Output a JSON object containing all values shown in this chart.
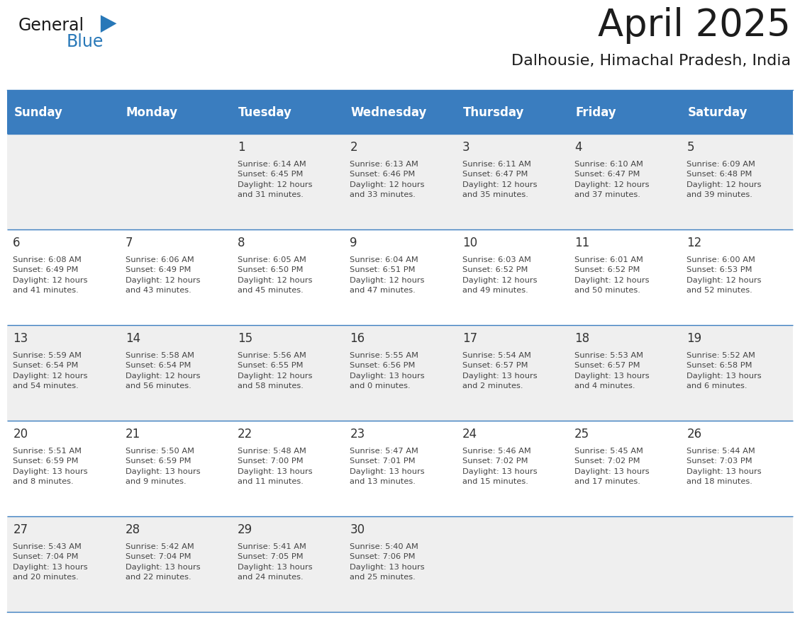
{
  "title": "April 2025",
  "subtitle": "Dalhousie, Himachal Pradesh, India",
  "header_bg_color": "#3a7dbf",
  "header_text_color": "#ffffff",
  "weekdays": [
    "Sunday",
    "Monday",
    "Tuesday",
    "Wednesday",
    "Thursday",
    "Friday",
    "Saturday"
  ],
  "row_colors": [
    "#efefef",
    "#ffffff"
  ],
  "border_color": "#3a7dbf",
  "text_color": "#333333",
  "calendar_data": [
    [
      "",
      "",
      "1\nSunrise: 6:14 AM\nSunset: 6:45 PM\nDaylight: 12 hours\nand 31 minutes.",
      "2\nSunrise: 6:13 AM\nSunset: 6:46 PM\nDaylight: 12 hours\nand 33 minutes.",
      "3\nSunrise: 6:11 AM\nSunset: 6:47 PM\nDaylight: 12 hours\nand 35 minutes.",
      "4\nSunrise: 6:10 AM\nSunset: 6:47 PM\nDaylight: 12 hours\nand 37 minutes.",
      "5\nSunrise: 6:09 AM\nSunset: 6:48 PM\nDaylight: 12 hours\nand 39 minutes."
    ],
    [
      "6\nSunrise: 6:08 AM\nSunset: 6:49 PM\nDaylight: 12 hours\nand 41 minutes.",
      "7\nSunrise: 6:06 AM\nSunset: 6:49 PM\nDaylight: 12 hours\nand 43 minutes.",
      "8\nSunrise: 6:05 AM\nSunset: 6:50 PM\nDaylight: 12 hours\nand 45 minutes.",
      "9\nSunrise: 6:04 AM\nSunset: 6:51 PM\nDaylight: 12 hours\nand 47 minutes.",
      "10\nSunrise: 6:03 AM\nSunset: 6:52 PM\nDaylight: 12 hours\nand 49 minutes.",
      "11\nSunrise: 6:01 AM\nSunset: 6:52 PM\nDaylight: 12 hours\nand 50 minutes.",
      "12\nSunrise: 6:00 AM\nSunset: 6:53 PM\nDaylight: 12 hours\nand 52 minutes."
    ],
    [
      "13\nSunrise: 5:59 AM\nSunset: 6:54 PM\nDaylight: 12 hours\nand 54 minutes.",
      "14\nSunrise: 5:58 AM\nSunset: 6:54 PM\nDaylight: 12 hours\nand 56 minutes.",
      "15\nSunrise: 5:56 AM\nSunset: 6:55 PM\nDaylight: 12 hours\nand 58 minutes.",
      "16\nSunrise: 5:55 AM\nSunset: 6:56 PM\nDaylight: 13 hours\nand 0 minutes.",
      "17\nSunrise: 5:54 AM\nSunset: 6:57 PM\nDaylight: 13 hours\nand 2 minutes.",
      "18\nSunrise: 5:53 AM\nSunset: 6:57 PM\nDaylight: 13 hours\nand 4 minutes.",
      "19\nSunrise: 5:52 AM\nSunset: 6:58 PM\nDaylight: 13 hours\nand 6 minutes."
    ],
    [
      "20\nSunrise: 5:51 AM\nSunset: 6:59 PM\nDaylight: 13 hours\nand 8 minutes.",
      "21\nSunrise: 5:50 AM\nSunset: 6:59 PM\nDaylight: 13 hours\nand 9 minutes.",
      "22\nSunrise: 5:48 AM\nSunset: 7:00 PM\nDaylight: 13 hours\nand 11 minutes.",
      "23\nSunrise: 5:47 AM\nSunset: 7:01 PM\nDaylight: 13 hours\nand 13 minutes.",
      "24\nSunrise: 5:46 AM\nSunset: 7:02 PM\nDaylight: 13 hours\nand 15 minutes.",
      "25\nSunrise: 5:45 AM\nSunset: 7:02 PM\nDaylight: 13 hours\nand 17 minutes.",
      "26\nSunrise: 5:44 AM\nSunset: 7:03 PM\nDaylight: 13 hours\nand 18 minutes."
    ],
    [
      "27\nSunrise: 5:43 AM\nSunset: 7:04 PM\nDaylight: 13 hours\nand 20 minutes.",
      "28\nSunrise: 5:42 AM\nSunset: 7:04 PM\nDaylight: 13 hours\nand 22 minutes.",
      "29\nSunrise: 5:41 AM\nSunset: 7:05 PM\nDaylight: 13 hours\nand 24 minutes.",
      "30\nSunrise: 5:40 AM\nSunset: 7:06 PM\nDaylight: 13 hours\nand 25 minutes.",
      "",
      "",
      ""
    ]
  ],
  "fig_width": 11.88,
  "fig_height": 9.18
}
